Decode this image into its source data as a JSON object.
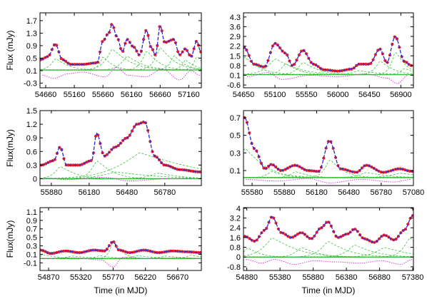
{
  "figure": {
    "ylabels": [
      "Flux (mJy)",
      "",
      "Flux(mJy)",
      "",
      "Flux(mJy)",
      ""
    ],
    "xlabels": [
      "",
      "",
      "",
      "",
      "Time (in MJD)",
      "Time (in MJD)"
    ]
  },
  "colors": {
    "observed": "#e8202a",
    "model": "#2a2ad8",
    "components": "#3ec43e",
    "residual": "#d82ad8",
    "baseline": "#22aa22",
    "axis": "#000000"
  },
  "chart_data": [
    {
      "type": "line",
      "panel": "top-left",
      "xlim": [
        54560,
        57380
      ],
      "ylim": [
        -0.45,
        1.95
      ],
      "xticks": [
        54660,
        55160,
        55660,
        56160,
        56660,
        57160
      ],
      "yticks": [
        -0.3,
        0.1,
        0.5,
        0.9,
        1.3,
        1.7
      ],
      "ytick_labels": [
        "-0.3",
        "0.1",
        "0.5",
        "0.9",
        "1.3",
        "1.7"
      ],
      "baseline": 0.12,
      "flares": [
        [
          54830,
          0.75,
          70
        ],
        [
          55660,
          0.85,
          55
        ],
        [
          55820,
          1.35,
          100
        ],
        [
          56080,
          0.9,
          90
        ],
        [
          56420,
          1.25,
          70
        ],
        [
          56660,
          1.45,
          80
        ],
        [
          56900,
          0.95,
          60
        ],
        [
          57100,
          0.65,
          55
        ],
        [
          57300,
          0.9,
          50
        ]
      ],
      "series": [
        {
          "values": [
            [
              54570,
              0.45
            ],
            [
              54700,
              0.55
            ],
            [
              54830,
              0.95
            ],
            [
              54950,
              0.45
            ],
            [
              55100,
              0.3
            ],
            [
              55300,
              0.3
            ],
            [
              55560,
              0.35
            ],
            [
              55660,
              1.05
            ],
            [
              55760,
              1.3
            ],
            [
              55820,
              1.6
            ],
            [
              55900,
              1.2
            ],
            [
              56000,
              0.7
            ],
            [
              56080,
              1.1
            ],
            [
              56200,
              0.85
            ],
            [
              56300,
              0.6
            ],
            [
              56420,
              1.4
            ],
            [
              56500,
              0.85
            ],
            [
              56580,
              0.6
            ],
            [
              56660,
              1.55
            ],
            [
              56740,
              1.0
            ],
            [
              56900,
              1.1
            ],
            [
              57000,
              0.6
            ],
            [
              57100,
              0.8
            ],
            [
              57200,
              0.55
            ],
            [
              57300,
              1.05
            ],
            [
              57370,
              0.7
            ]
          ]
        },
        {
          "values": [
            [
              54600,
              -0.05
            ],
            [
              54800,
              -0.15
            ],
            [
              55050,
              0.0
            ],
            [
              55300,
              0.05
            ],
            [
              55700,
              -0.1
            ],
            [
              55900,
              0.2
            ],
            [
              56100,
              -0.05
            ],
            [
              56400,
              -0.1
            ],
            [
              56700,
              0.15
            ],
            [
              57000,
              -0.2
            ],
            [
              57200,
              0.1
            ],
            [
              57350,
              -0.05
            ]
          ]
        }
      ]
    },
    {
      "type": "line",
      "panel": "top-right",
      "xlim": [
        54650,
        57080
      ],
      "ylim": [
        -0.8,
        4.6
      ],
      "xticks": [
        54650,
        55100,
        55550,
        56000,
        56450,
        56900
      ],
      "yticks": [
        -0.6,
        0.1,
        0.8,
        1.5,
        2.2,
        2.9,
        3.6,
        4.3
      ],
      "ytick_labels": [
        "-0.6",
        "0.1",
        "0.8",
        "1.5",
        "2.2",
        "2.9",
        "3.6",
        "4.3"
      ],
      "baseline": 0.15,
      "flares": [
        [
          54660,
          2.6,
          70
        ],
        [
          55100,
          2.3,
          100
        ],
        [
          55250,
          1.6,
          60
        ],
        [
          55500,
          1.8,
          70
        ],
        [
          56300,
          0.6,
          80
        ],
        [
          56600,
          2.0,
          60
        ],
        [
          56820,
          3.4,
          50
        ],
        [
          56950,
          0.9,
          50
        ]
      ],
      "series": [
        {
          "values": [
            [
              54660,
              2.1
            ],
            [
              54800,
              0.9
            ],
            [
              54950,
              0.7
            ],
            [
              55100,
              2.4
            ],
            [
              55250,
              1.7
            ],
            [
              55350,
              0.8
            ],
            [
              55500,
              1.9
            ],
            [
              55650,
              0.9
            ],
            [
              55800,
              0.5
            ],
            [
              56000,
              0.4
            ],
            [
              56200,
              0.55
            ],
            [
              56300,
              0.9
            ],
            [
              56450,
              0.9
            ],
            [
              56600,
              2.0
            ],
            [
              56700,
              1.0
            ],
            [
              56820,
              2.9
            ],
            [
              56950,
              1.1
            ],
            [
              57050,
              0.8
            ]
          ]
        },
        {
          "values": [
            [
              54700,
              0.0
            ],
            [
              55000,
              0.3
            ],
            [
              55200,
              -0.2
            ],
            [
              55600,
              0.1
            ],
            [
              56000,
              0.0
            ],
            [
              56400,
              0.2
            ],
            [
              56700,
              -0.1
            ],
            [
              56850,
              -0.5
            ],
            [
              57000,
              0.1
            ]
          ]
        }
      ]
    },
    {
      "type": "line",
      "panel": "middle-left",
      "xlim": [
        55790,
        57070
      ],
      "ylim": [
        -0.15,
        1.5
      ],
      "xticks": [
        55880,
        56180,
        56480,
        56780
      ],
      "yticks": [
        0,
        0.3,
        0.6,
        0.9,
        1.2,
        1.5
      ],
      "ytick_labels": [
        "0",
        "0.3",
        "0.6",
        "0.9",
        "1.2",
        "1.5"
      ],
      "baseline": 0.0,
      "flares": [
        [
          55950,
          0.55,
          40
        ],
        [
          56240,
          0.8,
          40
        ],
        [
          56390,
          0.3,
          100
        ],
        [
          56580,
          1.15,
          150
        ],
        [
          56720,
          0.25,
          60
        ]
      ],
      "series": [
        {
          "values": [
            [
              55800,
              0.3
            ],
            [
              55900,
              0.4
            ],
            [
              55950,
              0.7
            ],
            [
              56000,
              0.3
            ],
            [
              56100,
              0.3
            ],
            [
              56200,
              0.4
            ],
            [
              56240,
              1.0
            ],
            [
              56300,
              0.5
            ],
            [
              56390,
              0.7
            ],
            [
              56480,
              0.9
            ],
            [
              56560,
              1.2
            ],
            [
              56620,
              1.25
            ],
            [
              56700,
              0.5
            ],
            [
              56780,
              0.3
            ],
            [
              56900,
              0.2
            ],
            [
              57060,
              0.15
            ]
          ]
        },
        {
          "values": [
            [
              55820,
              0.02
            ],
            [
              56000,
              -0.02
            ],
            [
              56300,
              0.03
            ],
            [
              56500,
              -0.05
            ],
            [
              56800,
              0.0
            ],
            [
              57000,
              0.01
            ]
          ]
        }
      ]
    },
    {
      "type": "line",
      "panel": "middle-right",
      "xlim": [
        55500,
        57080
      ],
      "ylim": [
        -0.07,
        0.78
      ],
      "xticks": [
        55580,
        55880,
        56180,
        56480,
        56780,
        57080
      ],
      "yticks": [
        0.1,
        0.3,
        0.5,
        0.7
      ],
      "ytick_labels": [
        "0.1",
        "0.3",
        "0.5",
        "0.7"
      ],
      "baseline": 0.02,
      "flares": [
        [
          55510,
          0.68,
          60
        ],
        [
          55760,
          0.14,
          40
        ],
        [
          55980,
          0.14,
          40
        ],
        [
          56300,
          0.42,
          40
        ],
        [
          56640,
          0.12,
          60
        ],
        [
          56950,
          0.1,
          80
        ]
      ],
      "series": [
        {
          "values": [
            [
              55510,
              0.7
            ],
            [
              55600,
              0.35
            ],
            [
              55700,
              0.12
            ],
            [
              55760,
              0.17
            ],
            [
              55850,
              0.1
            ],
            [
              55980,
              0.16
            ],
            [
              56100,
              0.1
            ],
            [
              56200,
              0.09
            ],
            [
              56300,
              0.44
            ],
            [
              56400,
              0.12
            ],
            [
              56550,
              0.08
            ],
            [
              56640,
              0.16
            ],
            [
              56800,
              0.08
            ],
            [
              56950,
              0.12
            ],
            [
              57070,
              0.09
            ]
          ]
        },
        {
          "values": [
            [
              55520,
              0.0
            ],
            [
              55800,
              -0.02
            ],
            [
              56100,
              0.01
            ],
            [
              56300,
              -0.04
            ],
            [
              56600,
              0.0
            ],
            [
              56900,
              -0.03
            ],
            [
              57060,
              0.0
            ]
          ]
        }
      ]
    },
    {
      "type": "line",
      "panel": "bottom-left",
      "xlim": [
        54750,
        57000
      ],
      "ylim": [
        -0.28,
        1.2
      ],
      "xticks": [
        54870,
        55320,
        55770,
        56220,
        56670
      ],
      "yticks": [
        -0.1,
        0.1,
        0.3,
        0.5,
        0.7,
        0.9,
        1.1
      ],
      "ytick_labels": [
        "-0.1",
        "0.1",
        "0.3",
        "0.5",
        "0.7",
        "0.9",
        "1.1"
      ],
      "baseline": 0.0,
      "flares": [
        [
          54800,
          0.18,
          60
        ],
        [
          55200,
          0.12,
          80
        ],
        [
          55580,
          0.14,
          60
        ],
        [
          55770,
          0.85,
          40
        ],
        [
          56100,
          0.14,
          80
        ],
        [
          56500,
          0.12,
          80
        ],
        [
          56850,
          0.16,
          60
        ]
      ],
      "series": [
        {
          "values": [
            [
              54760,
              0.2
            ],
            [
              54900,
              0.12
            ],
            [
              55100,
              0.18
            ],
            [
              55300,
              0.14
            ],
            [
              55500,
              0.2
            ],
            [
              55650,
              0.18
            ],
            [
              55770,
              0.4
            ],
            [
              55850,
              0.2
            ],
            [
              56000,
              0.14
            ],
            [
              56200,
              0.2
            ],
            [
              56400,
              0.14
            ],
            [
              56600,
              0.18
            ],
            [
              56800,
              0.16
            ],
            [
              56990,
              0.14
            ]
          ]
        },
        {
          "values": [
            [
              54770,
              0.0
            ],
            [
              55200,
              0.02
            ],
            [
              55600,
              -0.03
            ],
            [
              55770,
              -0.2
            ],
            [
              55900,
              0.03
            ],
            [
              56300,
              0.0
            ],
            [
              56700,
              0.02
            ],
            [
              56980,
              0.0
            ]
          ]
        }
      ]
    },
    {
      "type": "line",
      "panel": "bottom-right",
      "xlim": [
        54830,
        57390
      ],
      "ylim": [
        -1.1,
        4.05
      ],
      "xticks": [
        54880,
        55380,
        55880,
        56380,
        56880,
        57380
      ],
      "yticks": [
        -0.8,
        0,
        0.8,
        1.6,
        2.4,
        3.2,
        4
      ],
      "ytick_labels": [
        "-0.8",
        "0",
        "0.8",
        "1.6",
        "2.4",
        "3.2",
        "4"
      ],
      "baseline": 0.0,
      "flares": [
        [
          54890,
          1.5,
          60
        ],
        [
          55260,
          3.2,
          120
        ],
        [
          55700,
          1.6,
          80
        ],
        [
          56100,
          2.6,
          100
        ],
        [
          56500,
          2.0,
          100
        ],
        [
          56950,
          1.6,
          120
        ],
        [
          57330,
          3.2,
          80
        ]
      ],
      "series": [
        {
          "values": [
            [
              54850,
              1.7
            ],
            [
              55000,
              1.3
            ],
            [
              55150,
              2.2
            ],
            [
              55260,
              3.3
            ],
            [
              55400,
              2.0
            ],
            [
              55550,
              1.6
            ],
            [
              55700,
              2.0
            ],
            [
              55850,
              1.5
            ],
            [
              56000,
              2.4
            ],
            [
              56100,
              2.9
            ],
            [
              56250,
              1.6
            ],
            [
              56400,
              1.9
            ],
            [
              56500,
              2.3
            ],
            [
              56650,
              1.5
            ],
            [
              56800,
              1.2
            ],
            [
              56950,
              1.8
            ],
            [
              57100,
              1.4
            ],
            [
              57250,
              2.2
            ],
            [
              57380,
              3.4
            ]
          ]
        },
        {
          "values": [
            [
              54870,
              -0.2
            ],
            [
              55100,
              -0.5
            ],
            [
              55300,
              -0.2
            ],
            [
              55600,
              -0.6
            ],
            [
              55900,
              -0.3
            ],
            [
              56200,
              -0.4
            ],
            [
              56600,
              -0.5
            ],
            [
              56900,
              -0.3
            ],
            [
              57200,
              -0.6
            ],
            [
              57370,
              -0.2
            ]
          ]
        }
      ]
    }
  ]
}
